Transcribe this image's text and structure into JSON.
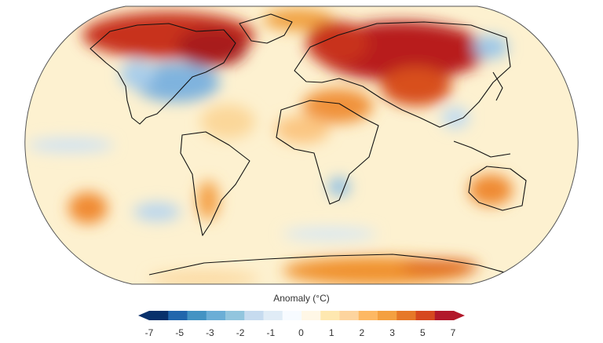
{
  "map": {
    "projection": "Robinson",
    "variable": "surface air temperature anomaly",
    "regions": [
      {
        "name": "Arctic Canada / Greenland",
        "anomaly": 5
      },
      {
        "name": "Eastern North America",
        "anomaly": -2
      },
      {
        "name": "Central Pacific",
        "anomaly": -1
      },
      {
        "name": "Northern Eurasia / Siberia",
        "anomaly": 6
      },
      {
        "name": "Middle East",
        "anomaly": 3
      },
      {
        "name": "North Africa",
        "anomaly": 2
      },
      {
        "name": "Southern Africa",
        "anomaly": -1
      },
      {
        "name": "Australia",
        "anomaly": 3
      },
      {
        "name": "South Pacific",
        "anomaly": 3
      },
      {
        "name": "Southern Ocean",
        "anomaly": -1
      },
      {
        "name": "Antarctica",
        "anomaly": 3
      },
      {
        "name": "Southeast Asia",
        "anomaly": -1
      }
    ]
  },
  "legend": {
    "title": "Anomaly (°C)",
    "ticks": [
      "-7",
      "-5",
      "-3",
      "-2",
      "-1",
      "0",
      "1",
      "2",
      "3",
      "5",
      "7"
    ],
    "colors": [
      "#08306b",
      "#2166ac",
      "#4393c3",
      "#6baed6",
      "#92c5de",
      "#c6dbef",
      "#e0ecf6",
      "#f7fbff",
      "#fff7e6",
      "#fee8b0",
      "#fdd49e",
      "#fdb863",
      "#f4a040",
      "#e67828",
      "#d6481f",
      "#b2182b"
    ]
  }
}
